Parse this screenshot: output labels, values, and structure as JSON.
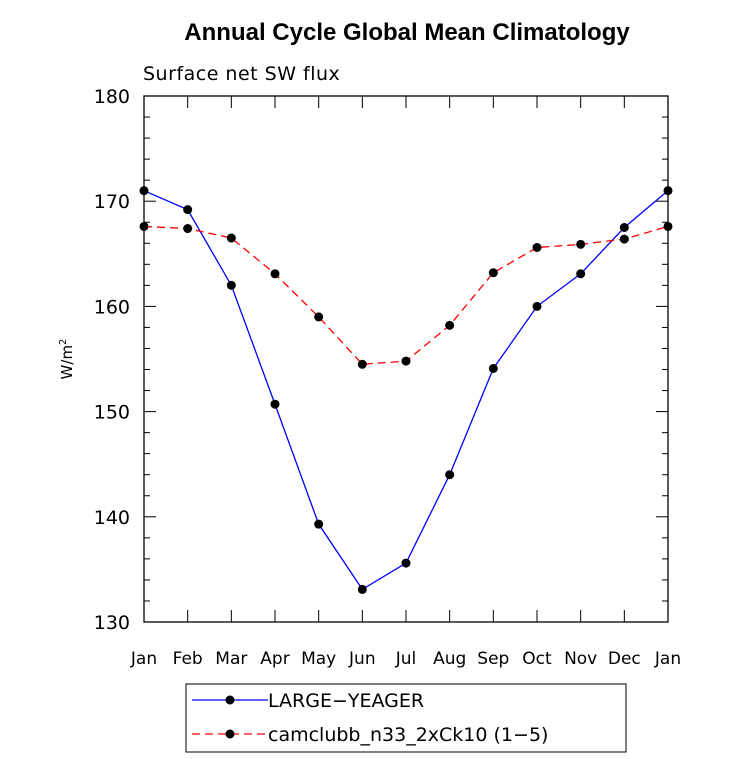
{
  "chart_data": {
    "type": "line",
    "title": "Annual Cycle Global Mean Climatology",
    "subtitle": "Surface net SW flux",
    "ylabel": "W/m",
    "ylabel_superscript": "2",
    "xlabel": "",
    "ylim": [
      130,
      180
    ],
    "yticks": [
      130,
      140,
      150,
      160,
      170,
      180
    ],
    "categories": [
      "Jan",
      "Feb",
      "Mar",
      "Apr",
      "May",
      "Jun",
      "Jul",
      "Aug",
      "Sep",
      "Oct",
      "Nov",
      "Dec",
      "Jan"
    ],
    "grid": false,
    "legend_position": "bottom-center",
    "series": [
      {
        "name": "LARGE−YEAGER",
        "color": "#0000ff",
        "dash": "solid",
        "values": [
          171.0,
          169.2,
          162.0,
          150.7,
          139.3,
          133.1,
          135.6,
          144.0,
          154.1,
          160.0,
          163.1,
          167.5,
          171.0
        ]
      },
      {
        "name": "camclubb_n33_2xCk10 (1−5)",
        "color": "#ff0000",
        "dash": "dashed",
        "values": [
          167.6,
          167.4,
          166.5,
          163.1,
          159.0,
          154.5,
          154.8,
          158.2,
          163.2,
          165.6,
          165.9,
          166.4,
          167.6
        ]
      }
    ]
  }
}
